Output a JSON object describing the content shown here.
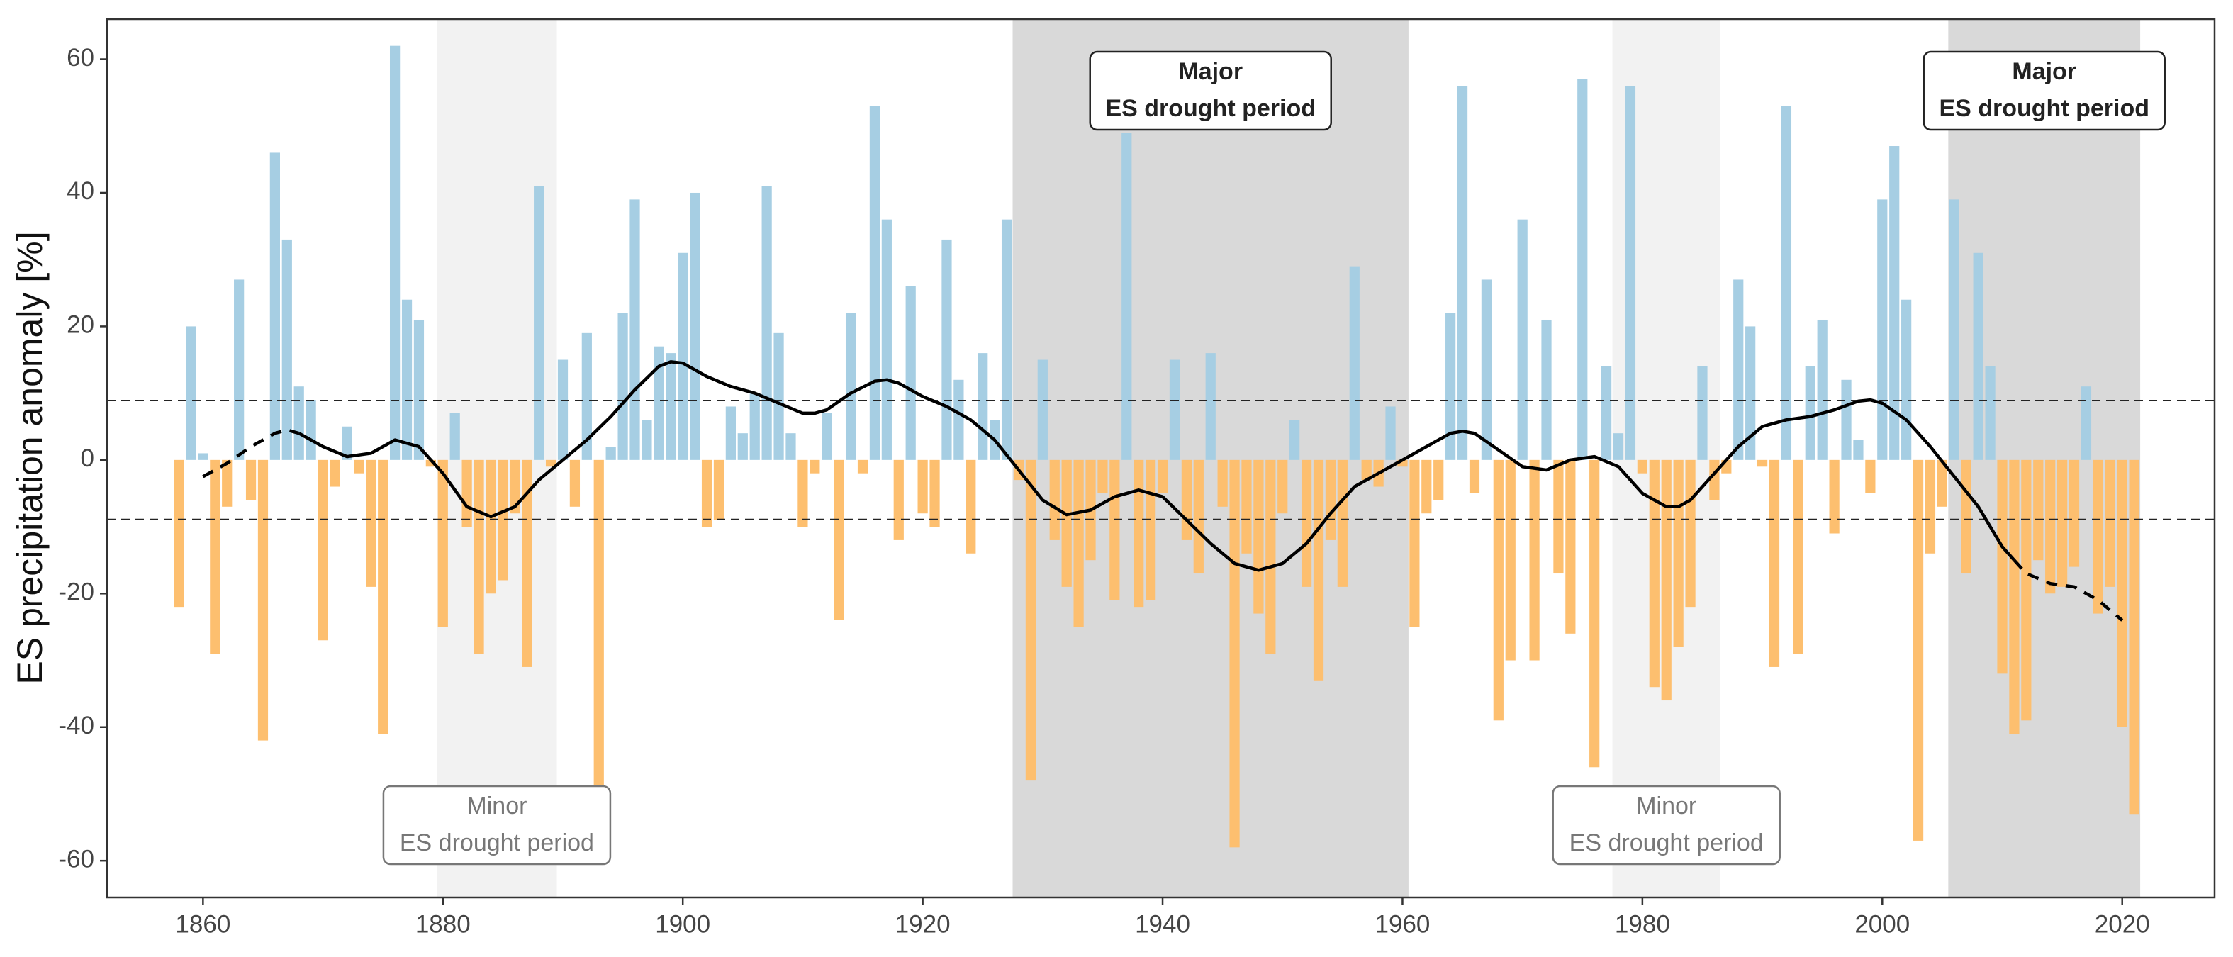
{
  "chart_data": {
    "type": "bar",
    "ylabel": "ES precipitation anomaly [%]",
    "categories": [
      1858,
      1859,
      1860,
      1861,
      1862,
      1863,
      1864,
      1865,
      1866,
      1867,
      1868,
      1869,
      1870,
      1871,
      1872,
      1873,
      1874,
      1875,
      1876,
      1877,
      1878,
      1879,
      1880,
      1881,
      1882,
      1883,
      1884,
      1885,
      1886,
      1887,
      1888,
      1889,
      1890,
      1891,
      1892,
      1893,
      1894,
      1895,
      1896,
      1897,
      1898,
      1899,
      1900,
      1901,
      1902,
      1903,
      1904,
      1905,
      1906,
      1907,
      1908,
      1909,
      1910,
      1911,
      1912,
      1913,
      1914,
      1915,
      1916,
      1917,
      1918,
      1919,
      1920,
      1921,
      1922,
      1923,
      1924,
      1925,
      1926,
      1927,
      1928,
      1929,
      1930,
      1931,
      1932,
      1933,
      1934,
      1935,
      1936,
      1937,
      1938,
      1939,
      1940,
      1941,
      1942,
      1943,
      1944,
      1945,
      1946,
      1947,
      1948,
      1949,
      1950,
      1951,
      1952,
      1953,
      1954,
      1955,
      1956,
      1957,
      1958,
      1959,
      1960,
      1961,
      1962,
      1963,
      1964,
      1965,
      1966,
      1967,
      1968,
      1969,
      1970,
      1971,
      1972,
      1973,
      1974,
      1975,
      1976,
      1977,
      1978,
      1979,
      1980,
      1981,
      1982,
      1983,
      1984,
      1985,
      1986,
      1987,
      1988,
      1989,
      1990,
      1991,
      1992,
      1993,
      1994,
      1995,
      1996,
      1997,
      1998,
      1999,
      2000,
      2001,
      2002,
      2003,
      2004,
      2005,
      2006,
      2007,
      2008,
      2009,
      2010,
      2011,
      2012,
      2013,
      2014,
      2015,
      2016,
      2017,
      2018,
      2019,
      2020,
      2021
    ],
    "values": [
      -22,
      20,
      1,
      -29,
      -7,
      27,
      -6,
      -42,
      46,
      33,
      11,
      9,
      -27,
      -4,
      5,
      -2,
      -19,
      -41,
      62,
      24,
      21,
      -1,
      -25,
      7,
      -10,
      -29,
      -20,
      -18,
      -8,
      -31,
      41,
      -1,
      15,
      -7,
      19,
      -50,
      2,
      22,
      39,
      6,
      17,
      16,
      31,
      40,
      -10,
      -9,
      8,
      4,
      10,
      41,
      19,
      4,
      -10,
      -2,
      7,
      -24,
      22,
      -2,
      53,
      36,
      -12,
      26,
      -8,
      -10,
      33,
      12,
      -14,
      16,
      6,
      36,
      -3,
      -48,
      15,
      -12,
      -19,
      -25,
      -15,
      -5,
      -21,
      49,
      -22,
      -21,
      -5,
      15,
      -12,
      -17,
      16,
      -7,
      -58,
      -14,
      -23,
      -29,
      -8,
      6,
      -19,
      -33,
      -12,
      -19,
      29,
      -3,
      -4,
      8,
      -1,
      -25,
      -8,
      -6,
      22,
      56,
      -5,
      27,
      -39,
      -30,
      36,
      -30,
      21,
      -17,
      -26,
      57,
      -46,
      14,
      4,
      56,
      -2,
      -34,
      -36,
      -28,
      -22,
      14,
      -6,
      -2,
      27,
      20,
      -1,
      -31,
      53,
      -29,
      14,
      21,
      -11,
      12,
      3,
      -5,
      39,
      47,
      24,
      -57,
      -14,
      -7,
      39,
      -17,
      31,
      14,
      -32,
      -41,
      -39,
      -15,
      -20,
      -19,
      -16,
      11,
      -23,
      -19,
      -40,
      -53
    ],
    "positive_color": "#a6cee3",
    "negative_color": "#fdbf6f",
    "xlim": [
      1852,
      2027.7
    ],
    "ylim": [
      -65.5,
      66
    ],
    "xticks": [
      1860,
      1880,
      1900,
      1920,
      1940,
      1960,
      1980,
      2000,
      2020
    ],
    "yticks": [
      -60,
      -40,
      -20,
      0,
      20,
      40,
      60
    ],
    "thresholds": [
      8.9,
      -8.9
    ],
    "lines": [
      {
        "style": "dashed",
        "color": "#000000",
        "x": [
          1860,
          1862,
          1864,
          1866,
          1867,
          1868
        ],
        "y": [
          -2.5,
          -0.5,
          2,
          4,
          4.5,
          4
        ]
      },
      {
        "style": "solid",
        "color": "#000000",
        "x": [
          1868,
          1870,
          1872,
          1874,
          1876,
          1878,
          1880,
          1882,
          1884,
          1886,
          1888,
          1890,
          1892,
          1894,
          1896,
          1898,
          1899,
          1900,
          1902,
          1904,
          1906,
          1908,
          1910,
          1911,
          1912,
          1914,
          1916,
          1917,
          1918,
          1920,
          1922,
          1924,
          1926,
          1928,
          1930,
          1932,
          1934,
          1936,
          1938,
          1940,
          1942,
          1944,
          1946,
          1948,
          1950,
          1952,
          1954,
          1956,
          1958,
          1960,
          1962,
          1964,
          1965,
          1966,
          1968,
          1970,
          1972,
          1974,
          1976,
          1978,
          1980,
          1982,
          1983,
          1984,
          1986,
          1988,
          1990,
          1992,
          1994,
          1996,
          1998,
          1999,
          2000,
          2002,
          2004,
          2006,
          2008,
          2010,
          2011
        ],
        "y": [
          4,
          2,
          0.5,
          1,
          3,
          2,
          -2,
          -7,
          -8.5,
          -7,
          -3,
          0,
          3,
          6.5,
          10.5,
          14,
          14.7,
          14.5,
          12.5,
          11,
          10,
          8.5,
          7,
          7,
          7.5,
          10,
          11.8,
          12,
          11.5,
          9.5,
          8,
          6,
          3,
          -1.5,
          -6,
          -8.2,
          -7.5,
          -5.5,
          -4.5,
          -5.5,
          -9,
          -12.5,
          -15.5,
          -16.5,
          -15.5,
          -12.5,
          -8,
          -4,
          -2,
          0,
          2,
          4,
          4.3,
          4,
          1.5,
          -1,
          -1.5,
          0,
          0.5,
          -1,
          -5,
          -7,
          -7,
          -6,
          -2,
          2,
          5,
          6,
          6.5,
          7.5,
          8.8,
          9,
          8.5,
          6,
          2,
          -2.5,
          -7,
          -13,
          -15
        ]
      },
      {
        "style": "dashed",
        "color": "#000000",
        "x": [
          2011,
          2012,
          2014,
          2016,
          2018,
          2020
        ],
        "y": [
          -15,
          -17,
          -18.5,
          -19,
          -21,
          -24
        ]
      }
    ],
    "periods": [
      {
        "start": 1879.5,
        "end": 1889.5,
        "kind": "minor",
        "color": "#f2f2f2",
        "label": [
          "Minor",
          "ES drought period"
        ]
      },
      {
        "start": 1927.5,
        "end": 1960.5,
        "kind": "major",
        "color": "#d9d9d9",
        "label": [
          "Major",
          "ES drought period"
        ]
      },
      {
        "start": 1977.5,
        "end": 1986.5,
        "kind": "minor",
        "color": "#f2f2f2",
        "label": [
          "Minor",
          "ES drought period"
        ]
      },
      {
        "start": 2005.5,
        "end": 2021.5,
        "kind": "major",
        "color": "#d9d9d9",
        "label": [
          "Major",
          "ES drought period"
        ]
      }
    ]
  }
}
